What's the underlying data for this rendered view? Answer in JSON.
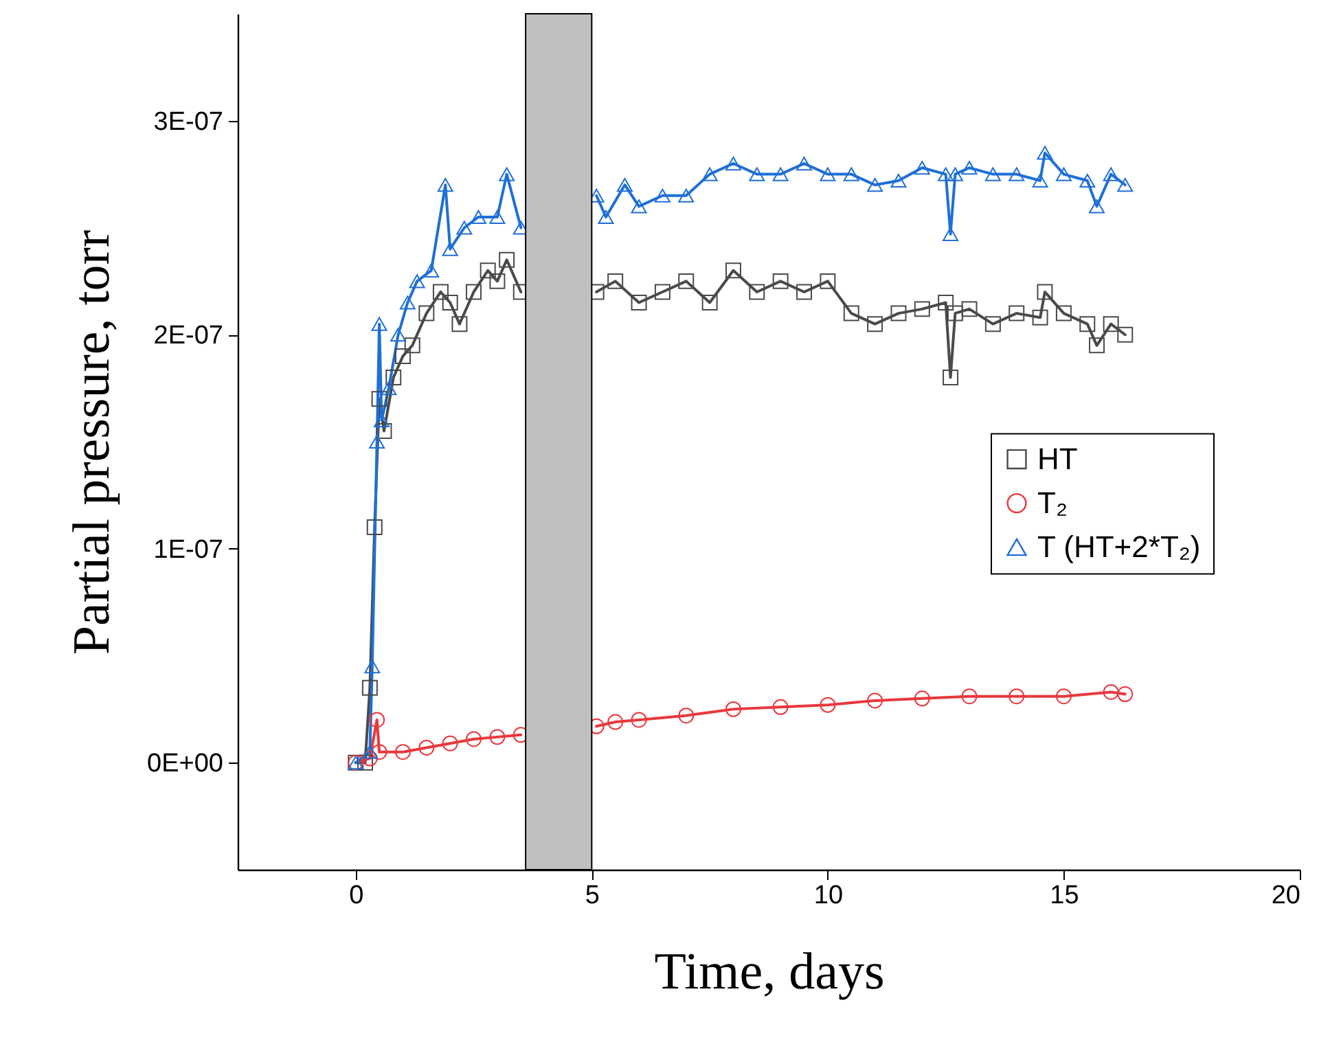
{
  "chart_data": {
    "type": "line",
    "xlabel": "Time, days",
    "ylabel": "Partial pressure, torr",
    "xlim": [
      -2.5,
      20
    ],
    "xticks": [
      0,
      5,
      10,
      15,
      20
    ],
    "ylim": [
      -5e-08,
      3.5e-07
    ],
    "yticks": [
      {
        "value": 0,
        "label": "0E+00"
      },
      {
        "value": 1e-07,
        "label": "1E-07"
      },
      {
        "value": 2e-07,
        "label": "2E-07"
      },
      {
        "value": 3e-07,
        "label": "3E-07"
      }
    ],
    "grid": false,
    "legend": "right",
    "line_style": "solid",
    "bands": [
      {
        "axis": "x",
        "from": 3.6,
        "to": 5,
        "color": "#c0c0c0"
      }
    ],
    "series": [
      {
        "name": "HT",
        "color": "#4a4a4a",
        "marker": "square",
        "x": [
          0,
          0.2,
          0.3,
          0.4,
          0.5,
          0.6,
          0.8,
          1.0,
          1.2,
          1.5,
          1.8,
          2.0,
          2.2,
          2.5,
          2.8,
          3.0,
          3.2,
          3.5,
          4.2,
          5.1,
          5.5,
          6,
          6.5,
          7,
          7.5,
          8,
          8.5,
          9,
          9.5,
          10,
          10.5,
          11,
          11.5,
          12,
          12.5,
          12.6,
          12.7,
          13,
          13.5,
          14,
          14.5,
          14.6,
          15,
          15.5,
          15.7,
          16,
          16.3
        ],
        "values": [
          0,
          0,
          3.5e-08,
          1.1e-07,
          1.7e-07,
          1.55e-07,
          1.8e-07,
          1.9e-07,
          1.95e-07,
          2.1e-07,
          2.2e-07,
          2.15e-07,
          2.05e-07,
          2.2e-07,
          2.3e-07,
          2.25e-07,
          2.35e-07,
          2.2e-07,
          null,
          2.2e-07,
          2.25e-07,
          2.15e-07,
          2.2e-07,
          2.25e-07,
          2.15e-07,
          2.3e-07,
          2.2e-07,
          2.25e-07,
          2.2e-07,
          2.25e-07,
          2.1e-07,
          2.05e-07,
          2.1e-07,
          2.12e-07,
          2.15e-07,
          1.8e-07,
          2.1e-07,
          2.12e-07,
          2.05e-07,
          2.1e-07,
          2.08e-07,
          2.2e-07,
          2.1e-07,
          2.05e-07,
          1.95e-07,
          2.05e-07,
          2e-07
        ]
      },
      {
        "name": "T₂",
        "color": "#e8383d",
        "marker": "circle",
        "x": [
          0,
          0.3,
          0.45,
          0.5,
          1,
          1.5,
          2,
          2.5,
          3,
          3.5,
          4.2,
          5.1,
          5.5,
          6,
          7,
          8,
          9,
          10,
          11,
          12,
          13,
          14,
          15,
          16,
          16.3
        ],
        "values": [
          0,
          2e-09,
          2e-08,
          5e-09,
          5e-09,
          7e-09,
          9e-09,
          1.1e-08,
          1.2e-08,
          1.3e-08,
          null,
          1.7e-08,
          1.9e-08,
          2e-08,
          2.2e-08,
          2.5e-08,
          2.6e-08,
          2.7e-08,
          2.9e-08,
          3e-08,
          3.1e-08,
          3.1e-08,
          3.1e-08,
          3.3e-08,
          3.2e-08
        ]
      },
      {
        "name": "T (HT+2*T₂)",
        "color": "#1f6fd6",
        "marker": "triangle",
        "x": [
          0,
          0.3,
          0.35,
          0.45,
          0.5,
          0.55,
          0.7,
          0.9,
          1.1,
          1.3,
          1.6,
          1.9,
          2.0,
          2.3,
          2.6,
          3.0,
          3.2,
          3.5,
          4.2,
          5.1,
          5.3,
          5.7,
          6,
          6.5,
          7,
          7.5,
          8,
          8.5,
          9,
          9.5,
          10,
          10.5,
          11,
          11.5,
          12,
          12.5,
          12.6,
          12.7,
          13,
          13.5,
          14,
          14.5,
          14.6,
          15,
          15.5,
          15.7,
          16,
          16.3
        ],
        "values": [
          0,
          5e-09,
          4.5e-08,
          1.5e-07,
          2.05e-07,
          1.6e-07,
          1.75e-07,
          2e-07,
          2.15e-07,
          2.25e-07,
          2.3e-07,
          2.7e-07,
          2.4e-07,
          2.5e-07,
          2.55e-07,
          2.55e-07,
          2.75e-07,
          2.5e-07,
          null,
          2.65e-07,
          2.55e-07,
          2.7e-07,
          2.6e-07,
          2.65e-07,
          2.65e-07,
          2.75e-07,
          2.8e-07,
          2.75e-07,
          2.75e-07,
          2.8e-07,
          2.75e-07,
          2.75e-07,
          2.7e-07,
          2.72e-07,
          2.78e-07,
          2.75e-07,
          2.47e-07,
          2.75e-07,
          2.78e-07,
          2.75e-07,
          2.75e-07,
          2.72e-07,
          2.85e-07,
          2.75e-07,
          2.72e-07,
          2.6e-07,
          2.75e-07,
          2.7e-07
        ]
      }
    ]
  }
}
